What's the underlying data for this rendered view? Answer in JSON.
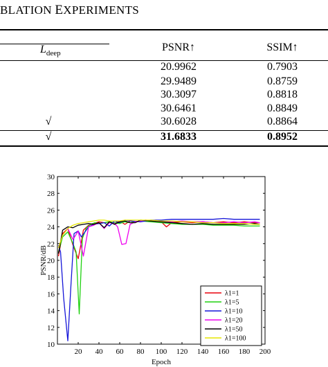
{
  "heading": {
    "part1": "BLATION ",
    "cap2": "E",
    "part2": "XPERIMENTS"
  },
  "table": {
    "col_ldeep_main": "L",
    "col_ldeep_sub": "deep",
    "col_psnr": "PSNR↑",
    "col_ssim": "SSIM↑",
    "rows": [
      {
        "check": "",
        "psnr": "20.9962",
        "ssim": "0.7903",
        "bold": false
      },
      {
        "check": "",
        "psnr": "29.9489",
        "ssim": "0.8759",
        "bold": false
      },
      {
        "check": "",
        "psnr": "30.3097",
        "ssim": "0.8818",
        "bold": false
      },
      {
        "check": "",
        "psnr": "30.6461",
        "ssim": "0.8849",
        "bold": false
      },
      {
        "check": "√",
        "psnr": "30.6028",
        "ssim": "0.8864",
        "bold": false
      },
      {
        "check": "√",
        "psnr": "31.6833",
        "ssim": "0.8952",
        "bold": true
      }
    ]
  },
  "chart_data": {
    "type": "line",
    "title": "",
    "xlabel": "Epoch",
    "ylabel": "PSNR/dB",
    "xlim": [
      0,
      200
    ],
    "ylim": [
      10,
      30
    ],
    "xticks": [
      20,
      40,
      60,
      80,
      100,
      120,
      140,
      160,
      180,
      200
    ],
    "yticks": [
      10,
      12,
      14,
      16,
      18,
      20,
      22,
      24,
      26,
      28,
      30
    ],
    "grid": false,
    "legend_position": "bottom-right",
    "series": [
      {
        "name": "λ1=1",
        "color": "#e8000b",
        "x": [
          1,
          5,
          10,
          15,
          20,
          22,
          25,
          30,
          35,
          40,
          45,
          50,
          55,
          60,
          65,
          70,
          75,
          80,
          85,
          90,
          95,
          100,
          105,
          110,
          120,
          130,
          140,
          150,
          160,
          170,
          180,
          190,
          195
        ],
        "y": [
          20.5,
          23.2,
          23.8,
          21.8,
          20.2,
          21.5,
          23.6,
          24.2,
          24.4,
          24.6,
          24.5,
          24.6,
          24.4,
          24.7,
          24.3,
          24.7,
          24.6,
          24.7,
          24.8,
          24.7,
          24.8,
          24.6,
          24.0,
          24.5,
          24.6,
          24.5,
          24.6,
          24.5,
          24.6,
          24.5,
          24.6,
          24.5,
          24.5
        ]
      },
      {
        "name": "λ1=5",
        "color": "#1ed10f",
        "x": [
          1,
          5,
          10,
          15,
          18,
          21,
          24,
          28,
          32,
          36,
          40,
          45,
          50,
          55,
          60,
          65,
          70,
          75,
          80,
          90,
          100,
          110,
          120,
          130,
          140,
          150,
          160,
          170,
          180,
          190,
          195
        ],
        "y": [
          21.0,
          22.8,
          23.4,
          22.0,
          21.0,
          13.6,
          22.6,
          23.9,
          24.3,
          24.5,
          24.4,
          24.5,
          24.6,
          24.5,
          24.4,
          24.6,
          24.5,
          24.6,
          24.7,
          24.6,
          24.5,
          24.4,
          24.3,
          24.3,
          24.3,
          24.2,
          24.2,
          24.2,
          24.1,
          24.1,
          24.1
        ]
      },
      {
        "name": "λ1=10",
        "color": "#1515d8",
        "x": [
          1,
          3,
          6,
          10,
          13,
          16,
          20,
          23,
          26,
          30,
          35,
          40,
          45,
          50,
          55,
          60,
          65,
          70,
          80,
          90,
          100,
          110,
          120,
          130,
          140,
          150,
          160,
          170,
          180,
          190,
          195
        ],
        "y": [
          21.8,
          21.0,
          15.5,
          10.4,
          17.0,
          23.2,
          23.5,
          22.8,
          23.3,
          24.0,
          24.3,
          24.4,
          24.5,
          24.1,
          24.7,
          24.5,
          24.8,
          24.7,
          24.6,
          24.8,
          24.8,
          24.9,
          24.9,
          24.9,
          24.9,
          24.9,
          25.0,
          24.9,
          24.9,
          24.9,
          24.9
        ]
      },
      {
        "name": "λ1=20",
        "color": "#ee00ee",
        "x": [
          1,
          5,
          10,
          15,
          20,
          25,
          30,
          35,
          40,
          45,
          50,
          55,
          58,
          62,
          66,
          70,
          75,
          80,
          85,
          90,
          100,
          110,
          120,
          130,
          140,
          150,
          160,
          170,
          180,
          190,
          195
        ],
        "y": [
          21.5,
          23.0,
          23.8,
          22.5,
          23.5,
          20.5,
          24.0,
          24.2,
          24.5,
          23.8,
          24.5,
          24.4,
          24.0,
          21.9,
          22.0,
          24.3,
          24.6,
          24.7,
          24.8,
          24.7,
          24.6,
          24.6,
          24.7,
          24.6,
          24.6,
          24.5,
          24.5,
          24.6,
          24.5,
          24.6,
          24.5
        ]
      },
      {
        "name": "λ1=50",
        "color": "#000000",
        "x": [
          1,
          5,
          10,
          15,
          20,
          25,
          30,
          35,
          40,
          45,
          50,
          55,
          60,
          65,
          70,
          75,
          80,
          90,
          100,
          110,
          120,
          130,
          140,
          150,
          160,
          170,
          180,
          190,
          195
        ],
        "y": [
          20.8,
          23.6,
          24.0,
          23.9,
          24.2,
          24.3,
          24.4,
          24.3,
          24.5,
          23.9,
          24.6,
          24.3,
          24.6,
          24.7,
          24.5,
          24.5,
          24.8,
          24.7,
          24.6,
          24.5,
          24.4,
          24.3,
          24.4,
          24.3,
          24.3,
          24.3,
          24.3,
          24.4,
          24.3
        ]
      },
      {
        "name": "λ1=100",
        "color": "#e6e600",
        "x": [
          1,
          5,
          10,
          15,
          20,
          25,
          30,
          35,
          40,
          45,
          50,
          55,
          60,
          65,
          70,
          80,
          90,
          100,
          110,
          120,
          130,
          140,
          150,
          160,
          170,
          180,
          190,
          195
        ],
        "y": [
          21.5,
          23.0,
          23.8,
          24.2,
          24.4,
          24.5,
          24.6,
          24.7,
          24.8,
          24.8,
          24.7,
          24.7,
          24.7,
          24.8,
          24.8,
          24.8,
          24.8,
          24.7,
          24.7,
          24.6,
          24.6,
          24.5,
          24.5,
          24.4,
          24.4,
          24.4,
          24.3,
          24.3
        ]
      }
    ]
  }
}
